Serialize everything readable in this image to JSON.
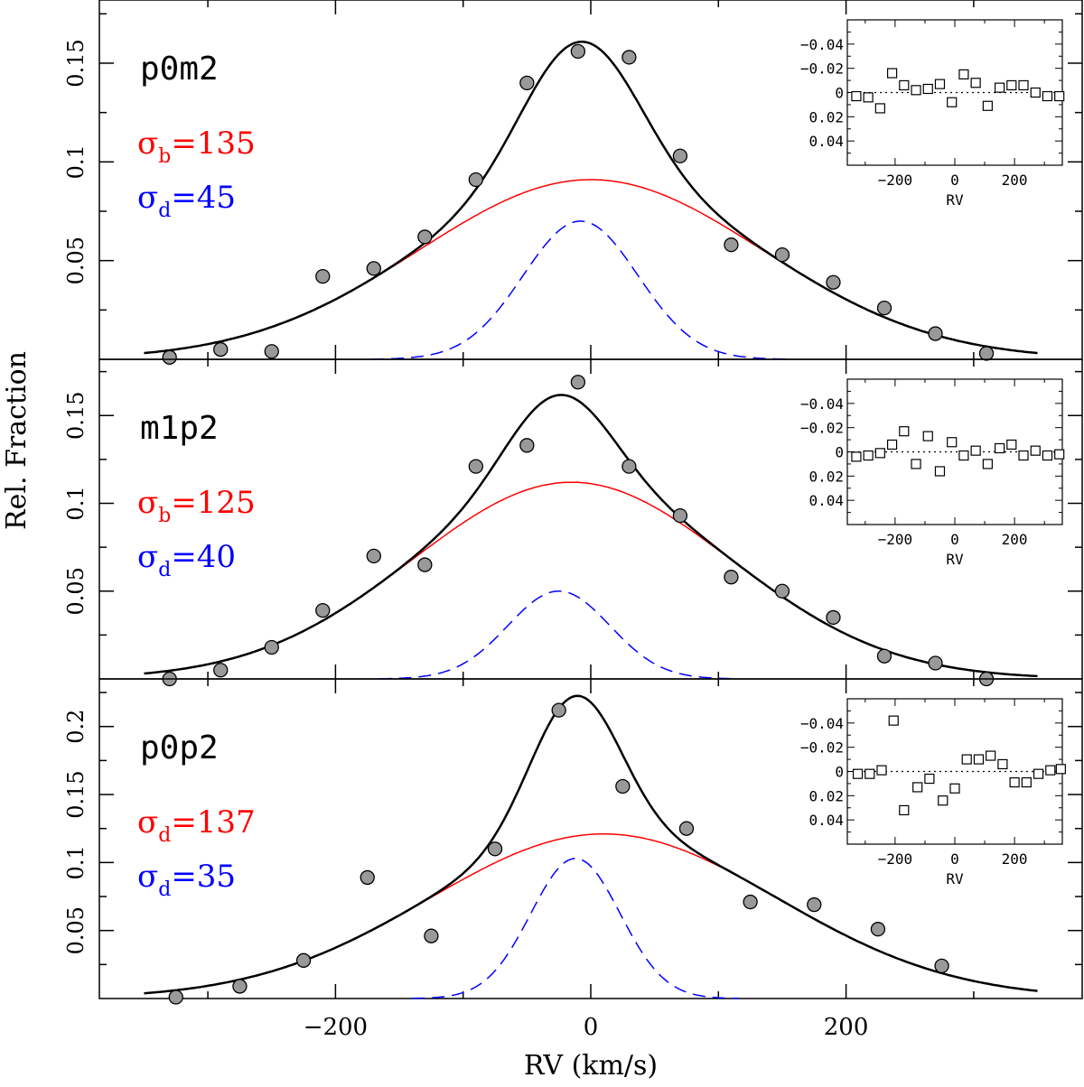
{
  "chart_data": {
    "type": "line",
    "x_axis": {
      "label": "RV (km/s)",
      "lim": [
        -385,
        385
      ],
      "major_ticks": [
        -200,
        0,
        200
      ],
      "minor_ticks": [
        -300,
        -100,
        100,
        300
      ]
    },
    "y_axis": {
      "label": "Rel. Fraction"
    },
    "colors": {
      "total": "#000000",
      "broad": "#ff0000",
      "narrow": "#0000ff",
      "points": "#999999"
    },
    "panels": [
      {
        "name": "p0m2",
        "ylim": [
          0,
          0.182
        ],
        "yticks": [
          0.05,
          0.1,
          0.15
        ],
        "ytick_labels": [
          "0.05",
          "0.1",
          "0.15"
        ],
        "labels": [
          {
            "symbol": "σ",
            "sub": "b",
            "value": "135",
            "color": "#ff0000"
          },
          {
            "symbol": "σ",
            "sub": "d",
            "value": "45",
            "color": "#0000ff"
          }
        ],
        "broad": {
          "amplitude": 0.091,
          "mu": 0,
          "sigma": 135
        },
        "narrow": {
          "amplitude": 0.07,
          "mu": -8,
          "sigma": 45
        },
        "points": [
          [
            -330,
            0.001
          ],
          [
            -290,
            0.005
          ],
          [
            -250,
            0.004
          ],
          [
            -210,
            0.042
          ],
          [
            -170,
            0.046
          ],
          [
            -130,
            0.062
          ],
          [
            -90,
            0.091
          ],
          [
            -50,
            0.14
          ],
          [
            -10,
            0.156
          ],
          [
            30,
            0.153
          ],
          [
            70,
            0.103
          ],
          [
            110,
            0.058
          ],
          [
            150,
            0.053
          ],
          [
            190,
            0.039
          ],
          [
            230,
            0.026
          ],
          [
            270,
            0.013
          ],
          [
            310,
            0.003
          ]
        ],
        "inset": {
          "xlabel": "RV",
          "xlim": [
            -360,
            360
          ],
          "ylim": [
            -0.06,
            0.06
          ],
          "yticks": [
            -0.04,
            -0.02,
            0,
            0.02,
            0.04
          ],
          "ytick_labels": [
            "-0.04",
            "-0.02",
            "0",
            "0.02",
            "0.04"
          ],
          "xticks": [
            -200,
            0,
            200
          ],
          "xtick_labels": [
            "-200",
            "0",
            "200"
          ],
          "residuals": [
            [
              -330,
              0.003
            ],
            [
              -290,
              0.004
            ],
            [
              -250,
              0.013
            ],
            [
              -210,
              -0.016
            ],
            [
              -170,
              -0.006
            ],
            [
              -130,
              -0.002
            ],
            [
              -90,
              -0.003
            ],
            [
              -50,
              -0.007
            ],
            [
              -10,
              0.008
            ],
            [
              30,
              -0.015
            ],
            [
              70,
              -0.008
            ],
            [
              110,
              0.011
            ],
            [
              150,
              -0.004
            ],
            [
              190,
              -0.006
            ],
            [
              230,
              -0.006
            ],
            [
              270,
              0.0
            ],
            [
              310,
              0.003
            ],
            [
              350,
              0.003
            ]
          ]
        }
      },
      {
        "name": "m1p2",
        "ylim": [
          0,
          0.182
        ],
        "yticks": [
          0.05,
          0.1,
          0.15
        ],
        "ytick_labels": [
          "0.05",
          "0.1",
          "0.15"
        ],
        "labels": [
          {
            "symbol": "σ",
            "sub": "b",
            "value": "125",
            "color": "#ff0000"
          },
          {
            "symbol": "σ",
            "sub": "d",
            "value": "40",
            "color": "#0000ff"
          }
        ],
        "broad": {
          "amplitude": 0.112,
          "mu": -15,
          "sigma": 125
        },
        "narrow": {
          "amplitude": 0.05,
          "mu": -25,
          "sigma": 40
        },
        "points": [
          [
            -330,
            -0.003
          ],
          [
            -290,
            0.005
          ],
          [
            -250,
            0.018
          ],
          [
            -210,
            0.039
          ],
          [
            -170,
            0.07
          ],
          [
            -130,
            0.065
          ],
          [
            -90,
            0.121
          ],
          [
            -50,
            0.133
          ],
          [
            -10,
            0.169
          ],
          [
            30,
            0.121
          ],
          [
            70,
            0.093
          ],
          [
            110,
            0.058
          ],
          [
            150,
            0.05
          ],
          [
            190,
            0.035
          ],
          [
            230,
            0.013
          ],
          [
            270,
            0.009
          ],
          [
            310,
            0.0
          ]
        ],
        "inset": {
          "xlabel": "RV",
          "xlim": [
            -360,
            360
          ],
          "ylim": [
            -0.06,
            0.06
          ],
          "yticks": [
            -0.04,
            -0.02,
            0,
            0.02,
            0.04
          ],
          "ytick_labels": [
            "-0.04",
            "-0.02",
            "0",
            "0.02",
            "0.04"
          ],
          "xticks": [
            -200,
            0,
            200
          ],
          "xtick_labels": [
            "-200",
            "0",
            "200"
          ],
          "residuals": [
            [
              -330,
              0.004
            ],
            [
              -290,
              0.003
            ],
            [
              -250,
              0.001
            ],
            [
              -210,
              -0.006
            ],
            [
              -170,
              -0.017
            ],
            [
              -130,
              0.01
            ],
            [
              -90,
              -0.013
            ],
            [
              -50,
              0.016
            ],
            [
              -10,
              -0.008
            ],
            [
              30,
              0.003
            ],
            [
              70,
              -0.001
            ],
            [
              110,
              0.01
            ],
            [
              150,
              -0.003
            ],
            [
              190,
              -0.006
            ],
            [
              230,
              0.003
            ],
            [
              270,
              -0.001
            ],
            [
              310,
              0.003
            ],
            [
              350,
              0.002
            ]
          ]
        }
      },
      {
        "name": "p0p2",
        "ylim": [
          0,
          0.235
        ],
        "yticks": [
          0.05,
          0.1,
          0.15,
          0.2
        ],
        "ytick_labels": [
          "0.05",
          "0.1",
          "0.15",
          "0.2"
        ],
        "labels": [
          {
            "symbol": "σ",
            "sub": "d",
            "value": "137",
            "color": "#ff0000"
          },
          {
            "symbol": "σ",
            "sub": "d",
            "value": "35",
            "color": "#0000ff"
          }
        ],
        "broad": {
          "amplitude": 0.121,
          "mu": 10,
          "sigma": 137
        },
        "narrow": {
          "amplitude": 0.103,
          "mu": -12,
          "sigma": 35
        },
        "points": [
          [
            -325,
            0.001
          ],
          [
            -275,
            0.009
          ],
          [
            -225,
            0.028
          ],
          [
            -175,
            0.089
          ],
          [
            -125,
            0.046
          ],
          [
            -75,
            0.11
          ],
          [
            -25,
            0.212
          ],
          [
            25,
            0.156
          ],
          [
            75,
            0.125
          ],
          [
            125,
            0.071
          ],
          [
            175,
            0.069
          ],
          [
            225,
            0.051
          ],
          [
            275,
            0.024
          ]
        ],
        "inset": {
          "xlabel": "RV",
          "xlim": [
            -360,
            360
          ],
          "ylim": [
            -0.06,
            0.06
          ],
          "yticks": [
            -0.04,
            -0.02,
            0,
            0.02,
            0.04
          ],
          "ytick_labels": [
            "-0.04",
            "-0.02",
            "0",
            "0.02",
            "0.04"
          ],
          "xticks": [
            -200,
            0,
            200
          ],
          "xtick_labels": [
            "-200",
            "0",
            "200"
          ],
          "residuals": [
            [
              -325,
              0.002
            ],
            [
              -285,
              0.002
            ],
            [
              -245,
              -0.001
            ],
            [
              -205,
              -0.042
            ],
            [
              -170,
              0.032
            ],
            [
              -125,
              0.013
            ],
            [
              -85,
              0.006
            ],
            [
              -40,
              0.024
            ],
            [
              0,
              0.014
            ],
            [
              40,
              -0.01
            ],
            [
              80,
              -0.01
            ],
            [
              120,
              -0.013
            ],
            [
              160,
              -0.006
            ],
            [
              200,
              0.009
            ],
            [
              240,
              0.009
            ],
            [
              280,
              0.002
            ],
            [
              320,
              -0.001
            ],
            [
              355,
              -0.002
            ]
          ]
        }
      }
    ]
  }
}
